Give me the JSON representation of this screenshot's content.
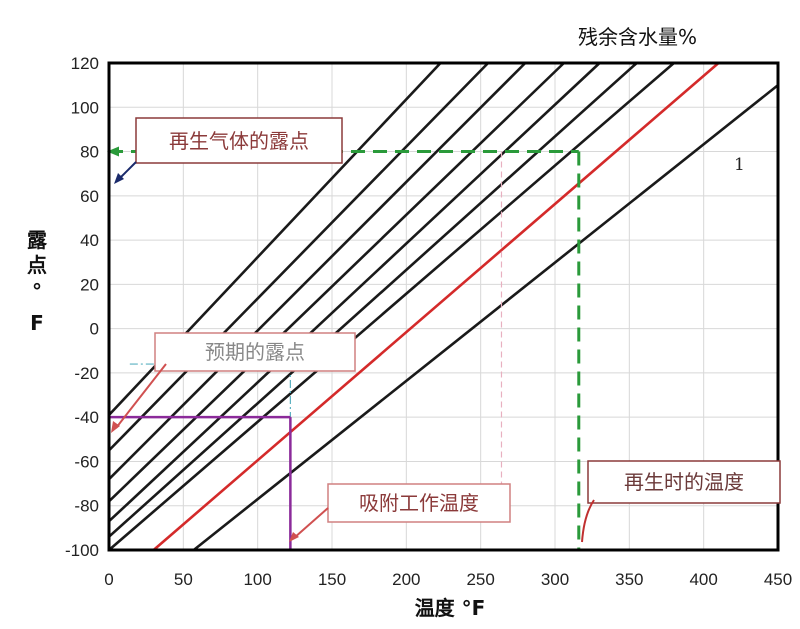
{
  "chart_data": {
    "type": "line",
    "title": "残余含水量%",
    "xlabel": "温度 °F",
    "ylabel": [
      "露",
      "点",
      "°",
      "F"
    ],
    "xlim": [
      0,
      450
    ],
    "ylim": [
      -100,
      120
    ],
    "x_ticks": [
      0,
      50,
      100,
      150,
      200,
      250,
      300,
      350,
      400,
      450
    ],
    "y_ticks": [
      120,
      100,
      80,
      60,
      40,
      20,
      0,
      -20,
      -40,
      -60,
      -80,
      -100
    ],
    "grid": true,
    "series": [
      {
        "color": "#1a1a1a",
        "x": [
          0,
          223
        ],
        "y": [
          -39,
          120
        ]
      },
      {
        "color": "#1a1a1a",
        "x": [
          0,
          255
        ],
        "y": [
          -55,
          120
        ]
      },
      {
        "color": "#1a1a1a",
        "x": [
          0,
          280
        ],
        "y": [
          -68,
          120
        ]
      },
      {
        "color": "#1a1a1a",
        "x": [
          0,
          306
        ],
        "y": [
          -78,
          120
        ]
      },
      {
        "color": "#1a1a1a",
        "x": [
          0,
          330
        ],
        "y": [
          -87,
          120
        ]
      },
      {
        "color": "#1a1a1a",
        "x": [
          0,
          355
        ],
        "y": [
          -94,
          120
        ]
      },
      {
        "color": "#1a1a1a",
        "x": [
          0,
          380
        ],
        "y": [
          -100,
          120
        ]
      },
      {
        "color": "#d42a2a",
        "x": [
          30,
          410
        ],
        "y": [
          -100,
          120
        ]
      },
      {
        "color": "#1a1a1a",
        "x": [
          57,
          450
        ],
        "y": [
          -100,
          110
        ]
      }
    ],
    "line_label": "1",
    "annotations": [
      {
        "text": "再生气体的露点",
        "color": "#8b3a3a",
        "border": "#8b3a3a"
      },
      {
        "text": "预期的露点",
        "color": "#888888",
        "border": "#d08080"
      },
      {
        "text": "吸附工作温度",
        "color": "#8b3a3a",
        "border": "#d08080"
      },
      {
        "text": "再生时的温度",
        "color": "#6b3a3a",
        "border": "#8b3a3a"
      }
    ]
  }
}
